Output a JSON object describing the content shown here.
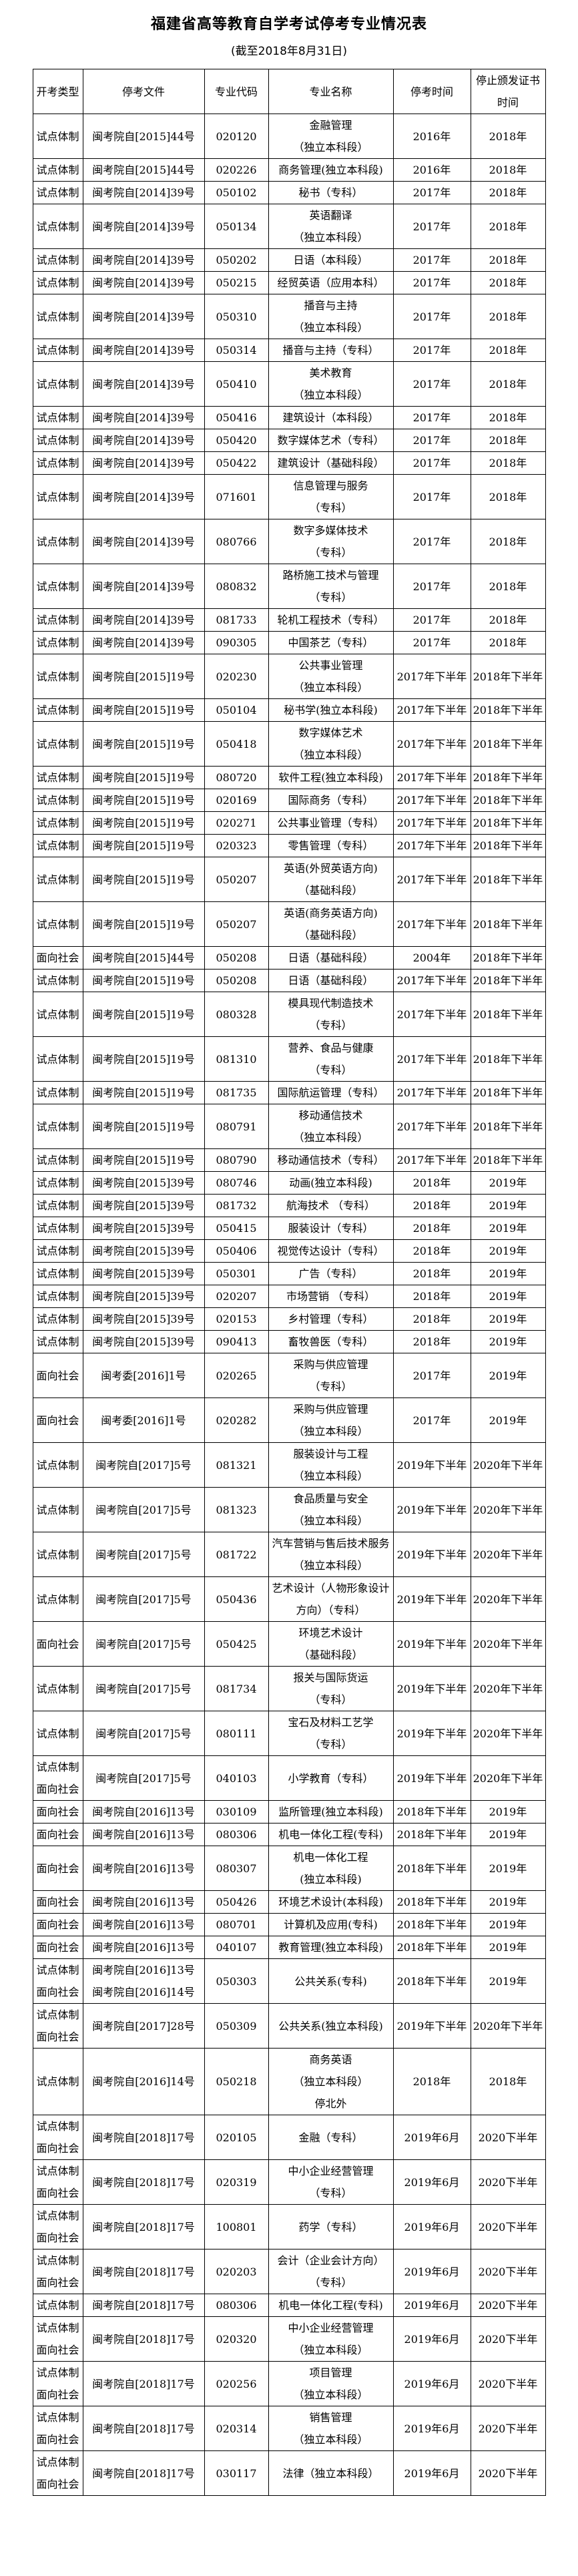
{
  "title": "福建省高等教育自学考试停考专业情况表",
  "subtitle": "(截至2018年8月31日)",
  "table": {
    "columns": [
      "开考类型",
      "停考文件",
      "专业代码",
      "专业名称",
      "停考时间",
      "停止颁发证书\n时间"
    ],
    "rows": [
      {
        "type": "试点体制",
        "doc": "闽考院自[2015]44号",
        "code": "020120",
        "name": "金融管理\n（独立本科段）",
        "stop": "2016年",
        "cert": "2018年"
      },
      {
        "type": "试点体制",
        "doc": "闽考院自[2015]44号",
        "code": "020226",
        "name": "商务管理(独立本科段)",
        "stop": "2016年",
        "cert": "2018年"
      },
      {
        "type": "试点体制",
        "doc": "闽考院自[2014]39号",
        "code": "050102",
        "name": "秘书（专科）",
        "stop": "2017年",
        "cert": "2018年"
      },
      {
        "type": "试点体制",
        "doc": "闽考院自[2014]39号",
        "code": "050134",
        "name": "英语翻译\n（独立本科段）",
        "stop": "2017年",
        "cert": "2018年"
      },
      {
        "type": "试点体制",
        "doc": "闽考院自[2014]39号",
        "code": "050202",
        "name": "日语（本科段）",
        "stop": "2017年",
        "cert": "2018年"
      },
      {
        "type": "试点体制",
        "doc": "闽考院自[2014]39号",
        "code": "050215",
        "name": "经贸英语（应用本科）",
        "stop": "2017年",
        "cert": "2018年"
      },
      {
        "type": "试点体制",
        "doc": "闽考院自[2014]39号",
        "code": "050310",
        "name": "播音与主持\n（独立本科段）",
        "stop": "2017年",
        "cert": "2018年"
      },
      {
        "type": "试点体制",
        "doc": "闽考院自[2014]39号",
        "code": "050314",
        "name": "播音与主持（专科）",
        "stop": "2017年",
        "cert": "2018年"
      },
      {
        "type": "试点体制",
        "doc": "闽考院自[2014]39号",
        "code": "050410",
        "name": "美术教育\n（独立本科段）",
        "stop": "2017年",
        "cert": "2018年"
      },
      {
        "type": "试点体制",
        "doc": "闽考院自[2014]39号",
        "code": "050416",
        "name": "建筑设计（本科段）",
        "stop": "2017年",
        "cert": "2018年"
      },
      {
        "type": "试点体制",
        "doc": "闽考院自[2014]39号",
        "code": "050420",
        "name": "数字媒体艺术（专科）",
        "stop": "2017年",
        "cert": "2018年"
      },
      {
        "type": "试点体制",
        "doc": "闽考院自[2014]39号",
        "code": "050422",
        "name": "建筑设计（基础科段）",
        "stop": "2017年",
        "cert": "2018年"
      },
      {
        "type": "试点体制",
        "doc": "闽考院自[2014]39号",
        "code": "071601",
        "name": "信息管理与服务\n（专科）",
        "stop": "2017年",
        "cert": "2018年"
      },
      {
        "type": "试点体制",
        "doc": "闽考院自[2014]39号",
        "code": "080766",
        "name": "数字多媒体技术\n（专科）",
        "stop": "2017年",
        "cert": "2018年"
      },
      {
        "type": "试点体制",
        "doc": "闽考院自[2014]39号",
        "code": "080832",
        "name": "路桥施工技术与管理\n（专科）",
        "stop": "2017年",
        "cert": "2018年"
      },
      {
        "type": "试点体制",
        "doc": "闽考院自[2014]39号",
        "code": "081733",
        "name": "轮机工程技术（专科）",
        "stop": "2017年",
        "cert": "2018年"
      },
      {
        "type": "试点体制",
        "doc": "闽考院自[2014]39号",
        "code": "090305",
        "name": "中国茶艺（专科）",
        "stop": "2017年",
        "cert": "2018年"
      },
      {
        "type": "试点体制",
        "doc": "闽考院自[2015]19号",
        "code": "020230",
        "name": "公共事业管理\n（独立本科段）",
        "stop": "2017年下半年",
        "cert": "2018年下半年"
      },
      {
        "type": "试点体制",
        "doc": "闽考院自[2015]19号",
        "code": "050104",
        "name": "秘书学(独立本科段)",
        "stop": "2017年下半年",
        "cert": "2018年下半年"
      },
      {
        "type": "试点体制",
        "doc": "闽考院自[2015]19号",
        "code": "050418",
        "name": "数字媒体艺术\n（独立本科段）",
        "stop": "2017年下半年",
        "cert": "2018年下半年"
      },
      {
        "type": "试点体制",
        "doc": "闽考院自[2015]19号",
        "code": "080720",
        "name": "软件工程(独立本科段)",
        "stop": "2017年下半年",
        "cert": "2018年下半年"
      },
      {
        "type": "试点体制",
        "doc": "闽考院自[2015]19号",
        "code": "020169",
        "name": "国际商务（专科）",
        "stop": "2017年下半年",
        "cert": "2018年下半年"
      },
      {
        "type": "试点体制",
        "doc": "闽考院自[2015]19号",
        "code": "020271",
        "name": "公共事业管理（专科）",
        "stop": "2017年下半年",
        "cert": "2018年下半年"
      },
      {
        "type": "试点体制",
        "doc": "闽考院自[2015]19号",
        "code": "020323",
        "name": "零售管理（专科）",
        "stop": "2017年下半年",
        "cert": "2018年下半年"
      },
      {
        "type": "试点体制",
        "doc": "闽考院自[2015]19号",
        "code": "050207",
        "name": "英语(外贸英语方向)\n（基础科段）",
        "stop": "2017年下半年",
        "cert": "2018年下半年"
      },
      {
        "type": "试点体制",
        "doc": "闽考院自[2015]19号",
        "code": "050207",
        "name": "英语(商务英语方向)\n（基础科段）",
        "stop": "2017年下半年",
        "cert": "2018年下半年"
      },
      {
        "type": "面向社会",
        "doc": "闽考院自[2015]44号",
        "code": "050208",
        "name": "日语（基础科段）",
        "stop": "2004年",
        "cert": "2018年下半年"
      },
      {
        "type": "试点体制",
        "doc": "闽考院自[2015]19号",
        "code": "050208",
        "name": "日语（基础科段）",
        "stop": "2017年下半年",
        "cert": "2018年下半年"
      },
      {
        "type": "试点体制",
        "doc": "闽考院自[2015]19号",
        "code": "080328",
        "name": "模具现代制造技术\n（专科）",
        "stop": "2017年下半年",
        "cert": "2018年下半年"
      },
      {
        "type": "试点体制",
        "doc": "闽考院自[2015]19号",
        "code": "081310",
        "name": "营养、食品与健康\n（专科）",
        "stop": "2017年下半年",
        "cert": "2018年下半年"
      },
      {
        "type": "试点体制",
        "doc": "闽考院自[2015]19号",
        "code": "081735",
        "name": "国际航运管理（专科）",
        "stop": "2017年下半年",
        "cert": "2018年下半年"
      },
      {
        "type": "试点体制",
        "doc": "闽考院自[2015]19号",
        "code": "080791",
        "name": "移动通信技术\n（独立本科段）",
        "stop": "2017年下半年",
        "cert": "2018年下半年"
      },
      {
        "type": "试点体制",
        "doc": "闽考院自[2015]19号",
        "code": "080790",
        "name": "移动通信技术（专科）",
        "stop": "2017年下半年",
        "cert": "2018年下半年"
      },
      {
        "type": "试点体制",
        "doc": "闽考院自[2015]39号",
        "code": "080746",
        "name": "动画(独立本科段)",
        "stop": "2018年",
        "cert": "2019年"
      },
      {
        "type": "试点体制",
        "doc": "闽考院自[2015]39号",
        "code": "081732",
        "name": "航海技术 （专科）",
        "stop": "2018年",
        "cert": "2019年"
      },
      {
        "type": "试点体制",
        "doc": "闽考院自[2015]39号",
        "code": "050415",
        "name": "服装设计（专科）",
        "stop": "2018年",
        "cert": "2019年"
      },
      {
        "type": "试点体制",
        "doc": "闽考院自[2015]39号",
        "code": "050406",
        "name": "视觉传达设计（专科）",
        "stop": "2018年",
        "cert": "2019年"
      },
      {
        "type": "试点体制",
        "doc": "闽考院自[2015]39号",
        "code": "050301",
        "name": "广告（专科）",
        "stop": "2018年",
        "cert": "2019年"
      },
      {
        "type": "试点体制",
        "doc": "闽考院自[2015]39号",
        "code": "020207",
        "name": "市场营销 （专科）",
        "stop": "2018年",
        "cert": "2019年"
      },
      {
        "type": "试点体制",
        "doc": "闽考院自[2015]39号",
        "code": "020153",
        "name": "乡村管理（专科）",
        "stop": "2018年",
        "cert": "2019年"
      },
      {
        "type": "试点体制",
        "doc": "闽考院自[2015]39号",
        "code": "090413",
        "name": "畜牧兽医（专科）",
        "stop": "2018年",
        "cert": "2019年"
      },
      {
        "type": "面向社会",
        "doc": "闽考委[2016]1号",
        "code": "020265",
        "name": "采购与供应管理\n（专科）",
        "stop": "2017年",
        "cert": "2019年"
      },
      {
        "type": "面向社会",
        "doc": "闽考委[2016]1号",
        "code": "020282",
        "name": "采购与供应管理\n（独立本科段）",
        "stop": "2017年",
        "cert": "2019年"
      },
      {
        "type": "试点体制",
        "doc": "闽考院自[2017]5号",
        "code": "081321",
        "name": "服装设计与工程\n（独立本科段）",
        "stop": "2019年下半年",
        "cert": "2020年下半年"
      },
      {
        "type": "试点体制",
        "doc": "闽考院自[2017]5号",
        "code": "081323",
        "name": "食品质量与安全\n（独立本科段）",
        "stop": "2019年下半年",
        "cert": "2020年下半年"
      },
      {
        "type": "试点体制",
        "doc": "闽考院自[2017]5号",
        "code": "081722",
        "name": "汽车营销与售后技术服务（独立本科段）",
        "stop": "2019年下半年",
        "cert": "2020年下半年"
      },
      {
        "type": "试点体制",
        "doc": "闽考院自[2017]5号",
        "code": "050436",
        "name": "艺术设计（人物形象设计方向）（专科）",
        "stop": "2019年下半年",
        "cert": "2020年下半年"
      },
      {
        "type": "面向社会",
        "doc": "闽考院自[2017]5号",
        "code": "050425",
        "name": "环境艺术设计\n（基础科段）",
        "stop": "2019年下半年",
        "cert": "2020年下半年"
      },
      {
        "type": "试点体制",
        "doc": "闽考院自[2017]5号",
        "code": "081734",
        "name": "报关与国际货运\n（专科）",
        "stop": "2019年下半年",
        "cert": "2020年下半年"
      },
      {
        "type": "试点体制",
        "doc": "闽考院自[2017]5号",
        "code": "080111",
        "name": "宝石及材料工艺学\n（专科）",
        "stop": "2019年下半年",
        "cert": "2020年下半年"
      },
      {
        "type": "试点体制\n面向社会",
        "doc": "闽考院自[2017]5号",
        "code": "040103",
        "name": "小学教育（专科）",
        "stop": "2019年下半年",
        "cert": "2020年下半年"
      },
      {
        "type": "面向社会",
        "doc": "闽考院自[2016]13号",
        "code": "030109",
        "name": "监所管理(独立本科段)",
        "stop": "2018年下半年",
        "cert": "2019年"
      },
      {
        "type": "面向社会",
        "doc": "闽考院自[2016]13号",
        "code": "080306",
        "name": "机电一体化工程(专科)",
        "stop": "2018年下半年",
        "cert": "2019年"
      },
      {
        "type": "面向社会",
        "doc": "闽考院自[2016]13号",
        "code": "080307",
        "name": "机电一体化工程\n(独立本科段)",
        "stop": "2018年下半年",
        "cert": "2019年"
      },
      {
        "type": "面向社会",
        "doc": "闽考院自[2016]13号",
        "code": "050426",
        "name": "环境艺术设计(本科段)",
        "stop": "2018年下半年",
        "cert": "2019年"
      },
      {
        "type": "面向社会",
        "doc": "闽考院自[2016]13号",
        "code": "080701",
        "name": "计算机及应用(专科)",
        "stop": "2018年下半年",
        "cert": "2019年"
      },
      {
        "type": "面向社会",
        "doc": "闽考院自[2016]13号",
        "code": "040107",
        "name": "教育管理(独立本科段)",
        "stop": "2018年下半年",
        "cert": "2019年"
      },
      {
        "type": "试点体制\n面向社会",
        "doc": "闽考院自[2016]13号\n闽考院自[2016]14号",
        "code": "050303",
        "name": "公共关系(专科)",
        "stop": "2018年下半年",
        "cert": "2019年"
      },
      {
        "type": "试点体制\n面向社会",
        "doc": "闽考院自[2017]28号",
        "code": "050309",
        "name": "公共关系(独立本科段)",
        "stop": "2019年下半年",
        "cert": "2020年下半年"
      },
      {
        "type": "试点体制",
        "doc": "闽考院自[2016]14号",
        "code": "050218",
        "name": "商务英语\n（独立本科段）\n停北外",
        "stop": "2018年",
        "cert": "2018年"
      },
      {
        "type": "试点体制\n面向社会",
        "doc": "闽考院自[2018]17号",
        "code": "020105",
        "name": "金融（专科）",
        "stop": "2019年6月",
        "cert": "2020下半年"
      },
      {
        "type": "试点体制\n面向社会",
        "doc": "闽考院自[2018]17号",
        "code": "020319",
        "name": "中小企业经营管理\n（专科）",
        "stop": "2019年6月",
        "cert": "2020下半年"
      },
      {
        "type": "试点体制\n面向社会",
        "doc": "闽考院自[2018]17号",
        "code": "100801",
        "name": "药学（专科）",
        "stop": "2019年6月",
        "cert": "2020下半年"
      },
      {
        "type": "试点体制\n面向社会",
        "doc": "闽考院自[2018]17号",
        "code": "020203",
        "name": "会计（企业会计方向）\n（专科）",
        "stop": "2019年6月",
        "cert": "2020下半年"
      },
      {
        "type": "试点体制",
        "doc": "闽考院自[2018]17号",
        "code": "080306",
        "name": "机电一体化工程(专科)",
        "stop": "2019年6月",
        "cert": "2020下半年"
      },
      {
        "type": "试点体制\n面向社会",
        "doc": "闽考院自[2018]17号",
        "code": "020320",
        "name": "中小企业经营管理\n（独立本科段）",
        "stop": "2019年6月",
        "cert": "2020下半年"
      },
      {
        "type": "试点体制\n面向社会",
        "doc": "闽考院自[2018]17号",
        "code": "020256",
        "name": "项目管理\n（独立本科段）",
        "stop": "2019年6月",
        "cert": "2020下半年"
      },
      {
        "type": "试点体制\n面向社会",
        "doc": "闽考院自[2018]17号",
        "code": "020314",
        "name": "销售管理\n（独立本科段）",
        "stop": "2019年6月",
        "cert": "2020下半年"
      },
      {
        "type": "试点体制\n面向社会",
        "doc": "闽考院自[2018]17号",
        "code": "030117",
        "name": "法律（独立本科段）",
        "stop": "2019年6月",
        "cert": "2020下半年"
      }
    ]
  }
}
